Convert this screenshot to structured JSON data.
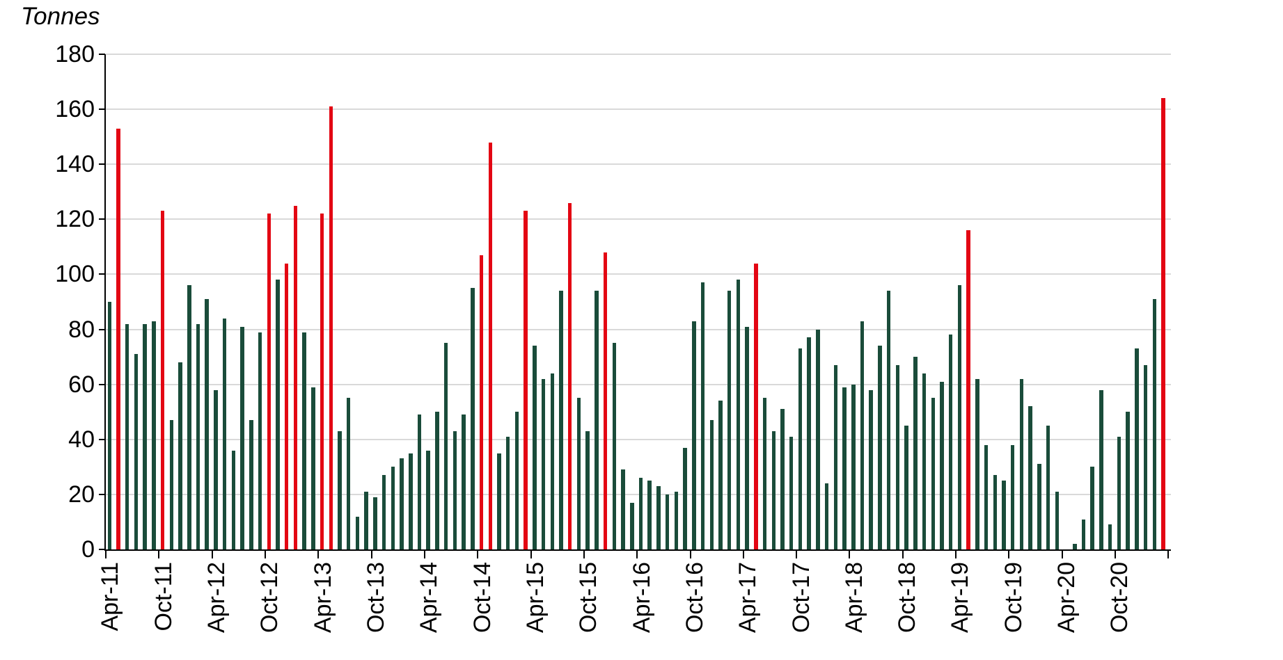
{
  "page": {
    "background": "#ffffff"
  },
  "chart_data": {
    "type": "bar",
    "title": "Tonnes",
    "ylabel": "Tonnes",
    "xlabel": "",
    "ylim": [
      0,
      180
    ],
    "yticks": [
      0,
      20,
      40,
      60,
      80,
      100,
      120,
      140,
      160,
      180
    ],
    "grid": "horizontal",
    "legend": "none",
    "bar_color": "#1a4c3a",
    "highlight_color": "#e30613",
    "gridline_color": "#d9d9d9",
    "axis_color": "#000000",
    "xtick_labels": [
      "Apr-11",
      "Oct-11",
      "Apr-12",
      "Oct-12",
      "Apr-13",
      "Oct-13",
      "Apr-14",
      "Oct-14",
      "Apr-15",
      "Oct-15",
      "Apr-16",
      "Oct-16",
      "Apr-17",
      "Oct-17",
      "Apr-18",
      "Oct-18",
      "Apr-19",
      "Oct-19",
      "Apr-20",
      "Oct-20"
    ],
    "xtick_step_months": 6,
    "categories": [
      "Apr-11",
      "May-11",
      "Jun-11",
      "Jul-11",
      "Aug-11",
      "Sep-11",
      "Oct-11",
      "Nov-11",
      "Dec-11",
      "Jan-12",
      "Feb-12",
      "Mar-12",
      "Apr-12",
      "May-12",
      "Jun-12",
      "Jul-12",
      "Aug-12",
      "Sep-12",
      "Oct-12",
      "Nov-12",
      "Dec-12",
      "Jan-13",
      "Feb-13",
      "Mar-13",
      "Apr-13",
      "May-13",
      "Jun-13",
      "Jul-13",
      "Aug-13",
      "Sep-13",
      "Oct-13",
      "Nov-13",
      "Dec-13",
      "Jan-14",
      "Feb-14",
      "Mar-14",
      "Apr-14",
      "May-14",
      "Jun-14",
      "Jul-14",
      "Aug-14",
      "Sep-14",
      "Oct-14",
      "Nov-14",
      "Dec-14",
      "Jan-15",
      "Feb-15",
      "Mar-15",
      "Apr-15",
      "May-15",
      "Jun-15",
      "Jul-15",
      "Aug-15",
      "Sep-15",
      "Oct-15",
      "Nov-15",
      "Dec-15",
      "Jan-16",
      "Feb-16",
      "Mar-16",
      "Apr-16",
      "May-16",
      "Jun-16",
      "Jul-16",
      "Aug-16",
      "Sep-16",
      "Oct-16",
      "Nov-16",
      "Dec-16",
      "Jan-17",
      "Feb-17",
      "Mar-17",
      "Apr-17",
      "May-17",
      "Jun-17",
      "Jul-17",
      "Aug-17",
      "Sep-17",
      "Oct-17",
      "Nov-17",
      "Dec-17",
      "Jan-18",
      "Feb-18",
      "Mar-18",
      "Apr-18",
      "May-18",
      "Jun-18",
      "Jul-18",
      "Aug-18",
      "Sep-18",
      "Oct-18",
      "Nov-18",
      "Dec-18",
      "Jan-19",
      "Feb-19",
      "Mar-19",
      "Apr-19",
      "May-19",
      "Jun-19",
      "Jul-19",
      "Aug-19",
      "Sep-19",
      "Oct-19",
      "Nov-19",
      "Dec-19",
      "Jan-20",
      "Feb-20",
      "Mar-20",
      "Apr-20",
      "May-20",
      "Jun-20",
      "Jul-20",
      "Aug-20",
      "Sep-20",
      "Oct-20",
      "Nov-20",
      "Dec-20",
      "Jan-21",
      "Feb-21",
      "Mar-21"
    ],
    "values": [
      90,
      153,
      82,
      71,
      82,
      83,
      123,
      47,
      68,
      96,
      82,
      91,
      58,
      84,
      36,
      81,
      47,
      79,
      122,
      98,
      104,
      125,
      79,
      59,
      122,
      161,
      43,
      55,
      12,
      21,
      19,
      27,
      30,
      33,
      35,
      49,
      36,
      50,
      75,
      43,
      49,
      95,
      107,
      148,
      35,
      41,
      50,
      123,
      74,
      62,
      64,
      94,
      126,
      55,
      43,
      94,
      108,
      75,
      29,
      17,
      26,
      25,
      23,
      20,
      21,
      37,
      83,
      97,
      47,
      54,
      94,
      98,
      81,
      104,
      55,
      43,
      51,
      41,
      73,
      77,
      80,
      24,
      67,
      59,
      60,
      83,
      58,
      74,
      94,
      67,
      45,
      70,
      64,
      55,
      61,
      78,
      96,
      116,
      62,
      38,
      27,
      25,
      38,
      62,
      52,
      31,
      45,
      21,
      0,
      2,
      11,
      30,
      58,
      9,
      41,
      50,
      73,
      67,
      91,
      164
    ],
    "highlight_indices": [
      1,
      6,
      18,
      20,
      21,
      24,
      25,
      42,
      43,
      47,
      52,
      56,
      73,
      97,
      119
    ]
  }
}
